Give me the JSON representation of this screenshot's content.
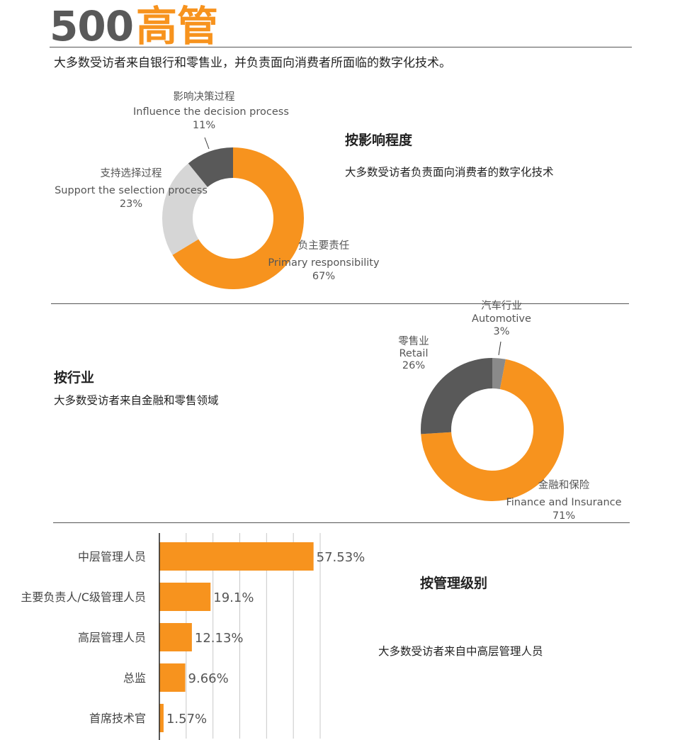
{
  "header": {
    "number": "500",
    "word": "高管",
    "subtitle": "大多数受访者来自银行和零售业，并负责面向消费者所面临的数字化技术。"
  },
  "colors": {
    "orange": "#F7931E",
    "dark": "#595959",
    "light": "#D6D6D6",
    "gray": "#8A8A8A"
  },
  "sections": {
    "influence": {
      "title": "按影响程度",
      "desc": "大多数受访者负责面向消费者的数字化技术"
    },
    "industry": {
      "title": "按行业",
      "desc": "大多数受访者来自金融和零售领域"
    },
    "level": {
      "title": "按管理级别",
      "desc": "大多数受访者来自中高层管理人员"
    }
  },
  "chart_data": [
    {
      "type": "pie",
      "slices": [
        {
          "label_cn": "负主要责任",
          "label_en": "Primary responsibility",
          "value": 67,
          "value_label": "67%",
          "color": "#F7931E"
        },
        {
          "label_cn": "支持选择过程",
          "label_en": "Support the selection process",
          "value": 23,
          "value_label": "23%",
          "color": "#D6D6D6"
        },
        {
          "label_cn": "影响决策过程",
          "label_en": "Influence the decision process",
          "value": 11,
          "value_label": "11%",
          "color": "#595959"
        }
      ]
    },
    {
      "type": "pie",
      "slices": [
        {
          "label_cn": "汽车行业",
          "label_en": "Automotive",
          "value": 3,
          "value_label": "3%",
          "color": "#8A8A8A"
        },
        {
          "label_cn": "金融和保险",
          "label_en": "Finance and Insurance",
          "value": 71,
          "value_label": "71%",
          "color": "#F7931E"
        },
        {
          "label_cn": "零售业",
          "label_en": "Retail",
          "value": 26,
          "value_label": "26%",
          "color": "#595959"
        }
      ]
    },
    {
      "type": "bar",
      "orientation": "horizontal",
      "categories": [
        "中层管理人员",
        "主要负责人/C级管理人员",
        "高层管理人员",
        "总监",
        "首席技术官"
      ],
      "values": [
        57.53,
        19.1,
        12.13,
        9.66,
        1.57
      ],
      "value_labels": [
        "57.53%",
        "19.1%",
        "12.13%",
        "9.66%",
        "1.57%"
      ],
      "xlim": [
        0,
        60
      ],
      "grid": true,
      "color": "#F7931E"
    }
  ]
}
